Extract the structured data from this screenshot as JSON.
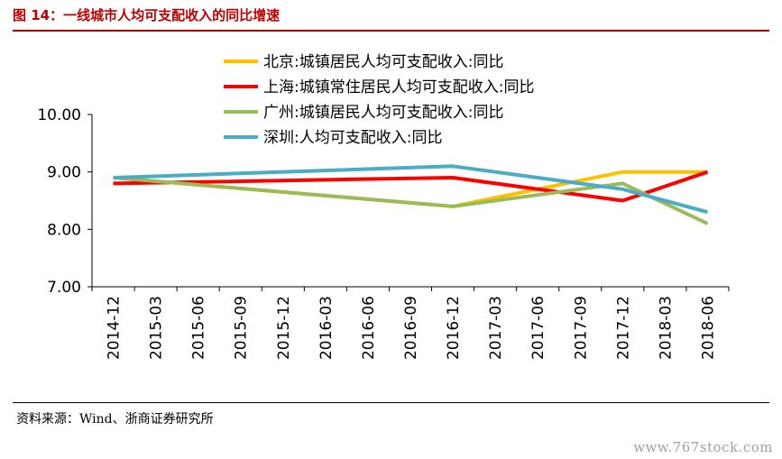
{
  "header": {
    "title": "图 14：一线城市人均可支配收入的同比增速"
  },
  "footer": {
    "source": "资料来源：Wind、浙商证券研究所",
    "watermark": "www.767stock.com"
  },
  "chart_data": {
    "type": "line",
    "title": "图 14：一线城市人均可支配收入的同比增速",
    "xlabel": "",
    "ylabel": "",
    "ylim": [
      7.0,
      10.0
    ],
    "yticks": [
      "7.00",
      "8.00",
      "9.00",
      "10.00"
    ],
    "grid": false,
    "legend_position": "top",
    "categories": [
      "2014-12",
      "2015-03",
      "2015-06",
      "2015-09",
      "2015-12",
      "2016-03",
      "2016-06",
      "2016-09",
      "2016-12",
      "2017-03",
      "2017-06",
      "2017-09",
      "2017-12",
      "2018-03",
      "2018-06"
    ],
    "series": [
      {
        "name": "北京:城镇居民人均可支配收入:同比",
        "color": "#ffc000",
        "points": [
          {
            "x": "2014-12",
            "y": 8.9
          },
          {
            "x": "2016-12",
            "y": 8.4
          },
          {
            "x": "2017-12",
            "y": 9.0
          },
          {
            "x": "2018-06",
            "y": 9.0
          }
        ]
      },
      {
        "name": "上海:城镇常住居民人均可支配收入:同比",
        "color": "#ff0000",
        "points": [
          {
            "x": "2014-12",
            "y": 8.8
          },
          {
            "x": "2016-12",
            "y": 8.9
          },
          {
            "x": "2017-12",
            "y": 8.5
          },
          {
            "x": "2018-06",
            "y": 9.0
          }
        ]
      },
      {
        "name": "广州:城镇居民人均可支配收入:同比",
        "color": "#9bbb59",
        "points": [
          {
            "x": "2014-12",
            "y": 8.9
          },
          {
            "x": "2016-12",
            "y": 8.4
          },
          {
            "x": "2017-12",
            "y": 8.8
          },
          {
            "x": "2018-06",
            "y": 8.1
          }
        ]
      },
      {
        "name": "深圳:人均可支配收入:同比",
        "color": "#4bacc6",
        "points": [
          {
            "x": "2014-12",
            "y": 8.9
          },
          {
            "x": "2016-12",
            "y": 9.1
          },
          {
            "x": "2017-12",
            "y": 8.7
          },
          {
            "x": "2018-06",
            "y": 8.3
          }
        ]
      }
    ]
  }
}
